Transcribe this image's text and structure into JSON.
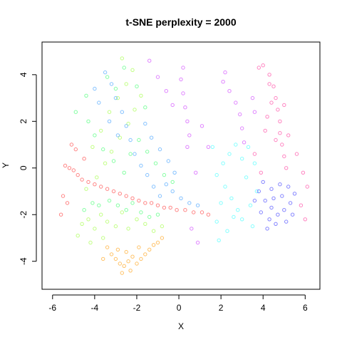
{
  "chart_data": {
    "type": "scatter",
    "title": "t-SNE perplexity = 2000",
    "xlabel": "X",
    "ylabel": "Y",
    "xlim": [
      -6.5,
      6.7
    ],
    "ylim": [
      -5.2,
      5.4
    ],
    "xticks": [
      -6,
      -4,
      -2,
      0,
      2,
      4,
      6
    ],
    "yticks": [
      -4,
      -2,
      0,
      2,
      4
    ],
    "grid": false,
    "legend": "none",
    "marker": "open circle",
    "clusters": [
      {
        "color": "#ff3333",
        "points": [
          [
            -5.4,
            0.1
          ],
          [
            -5.2,
            0.0
          ],
          [
            -5.0,
            -0.1
          ],
          [
            -4.8,
            -0.3
          ],
          [
            -4.6,
            -0.5
          ],
          [
            -4.3,
            -0.6
          ],
          [
            -4.0,
            -0.7
          ],
          [
            -3.7,
            -0.8
          ],
          [
            -3.4,
            -0.9
          ],
          [
            -3.1,
            -1.0
          ],
          [
            -2.8,
            -1.1
          ],
          [
            -2.5,
            -1.2
          ],
          [
            -2.2,
            -1.3
          ],
          [
            -1.9,
            -1.4
          ],
          [
            -1.6,
            -1.5
          ],
          [
            -1.3,
            -1.5
          ],
          [
            -1.0,
            -1.6
          ],
          [
            -0.7,
            -1.7
          ],
          [
            -0.4,
            -1.7
          ],
          [
            -0.1,
            -1.8
          ],
          [
            0.3,
            -1.8
          ],
          [
            0.7,
            -1.9
          ],
          [
            1.1,
            -1.9
          ],
          [
            1.4,
            -2.0
          ],
          [
            -5.5,
            -1.2
          ],
          [
            -5.6,
            -2.0
          ],
          [
            -5.3,
            -1.5
          ],
          [
            -4.9,
            0.8
          ],
          [
            -5.1,
            1.0
          ],
          [
            -4.5,
            0.4
          ]
        ]
      },
      {
        "color": "#ff9900",
        "points": [
          [
            -3.2,
            -3.7
          ],
          [
            -3.0,
            -3.9
          ],
          [
            -2.8,
            -4.1
          ],
          [
            -2.6,
            -4.2
          ],
          [
            -2.4,
            -4.0
          ],
          [
            -2.2,
            -3.8
          ],
          [
            -2.0,
            -4.1
          ],
          [
            -1.8,
            -3.9
          ],
          [
            -1.6,
            -3.7
          ],
          [
            -1.4,
            -3.5
          ],
          [
            -2.5,
            -3.6
          ],
          [
            -2.9,
            -3.5
          ],
          [
            -3.4,
            -3.4
          ],
          [
            -1.2,
            -3.3
          ],
          [
            -1.0,
            -3.2
          ],
          [
            -0.8,
            -3.0
          ],
          [
            -2.3,
            -4.4
          ],
          [
            -2.7,
            -4.5
          ],
          [
            -3.6,
            -3.9
          ],
          [
            -1.9,
            -3.4
          ]
        ]
      },
      {
        "color": "#99ff33",
        "points": [
          [
            -4.6,
            -2.4
          ],
          [
            -4.3,
            -2.2
          ],
          [
            -4.0,
            -2.6
          ],
          [
            -3.7,
            -2.0
          ],
          [
            -3.4,
            -2.3
          ],
          [
            -3.0,
            -2.5
          ],
          [
            -2.7,
            -1.9
          ],
          [
            -2.4,
            -2.6
          ],
          [
            -2.0,
            -2.2
          ],
          [
            -1.6,
            -2.4
          ],
          [
            -1.2,
            -2.7
          ],
          [
            -0.8,
            -2.5
          ],
          [
            -4.4,
            -0.9
          ],
          [
            -3.9,
            -0.4
          ],
          [
            -3.5,
            0.2
          ],
          [
            -3.2,
            0.7
          ],
          [
            -2.8,
            1.3
          ],
          [
            -2.4,
            1.9
          ],
          [
            -2.1,
            2.5
          ],
          [
            -1.8,
            3.1
          ],
          [
            -3.7,
            1.6
          ],
          [
            -3.3,
            2.4
          ],
          [
            -2.9,
            3.0
          ],
          [
            -2.5,
            3.6
          ],
          [
            -2.2,
            4.2
          ],
          [
            -2.7,
            4.7
          ],
          [
            -4.8,
            -2.9
          ],
          [
            -4.2,
            -3.2
          ],
          [
            -3.6,
            -3.0
          ],
          [
            -4.1,
            0.9
          ]
        ]
      },
      {
        "color": "#33ff66",
        "points": [
          [
            -4.5,
            -1.8
          ],
          [
            -4.1,
            -1.5
          ],
          [
            -3.8,
            -1.6
          ],
          [
            -3.3,
            -1.4
          ],
          [
            -2.9,
            -1.6
          ],
          [
            -2.5,
            -1.8
          ],
          [
            -2.2,
            -1.5
          ],
          [
            -1.8,
            -1.9
          ],
          [
            -1.4,
            -2.1
          ],
          [
            -1.0,
            -2.0
          ],
          [
            -4.3,
            2.0
          ],
          [
            -4.0,
            1.4
          ],
          [
            -3.6,
            0.8
          ],
          [
            -3.1,
            0.3
          ],
          [
            -2.6,
            -0.2
          ],
          [
            -2.3,
            0.6
          ],
          [
            -1.9,
            1.2
          ],
          [
            -1.5,
            0.7
          ],
          [
            -1.1,
            0.2
          ],
          [
            -0.7,
            -0.3
          ],
          [
            -0.3,
            -0.6
          ],
          [
            -3.0,
            3.4
          ],
          [
            -3.4,
            3.9
          ],
          [
            -2.6,
            4.3
          ],
          [
            -2.0,
            3.5
          ],
          [
            -1.6,
            2.6
          ],
          [
            -4.4,
            3.1
          ],
          [
            -4.9,
            2.4
          ]
        ]
      },
      {
        "color": "#3399ff",
        "points": [
          [
            -3.5,
            4.1
          ],
          [
            -3.2,
            3.6
          ],
          [
            -3.0,
            3.0
          ],
          [
            -2.7,
            2.4
          ],
          [
            -2.5,
            1.8
          ],
          [
            -2.3,
            1.2
          ],
          [
            -2.1,
            0.6
          ],
          [
            -1.8,
            0.1
          ],
          [
            -1.5,
            -0.3
          ],
          [
            -1.2,
            -0.8
          ],
          [
            -0.9,
            -1.2
          ],
          [
            -0.6,
            -0.7
          ],
          [
            -0.3,
            -1.0
          ],
          [
            0.1,
            -1.3
          ],
          [
            0.5,
            -1.5
          ],
          [
            0.9,
            -1.6
          ],
          [
            -3.8,
            2.8
          ],
          [
            -4.0,
            3.4
          ],
          [
            -3.3,
            2.0
          ],
          [
            -2.9,
            1.4
          ],
          [
            -1.6,
            1.9
          ],
          [
            -1.3,
            1.3
          ],
          [
            -0.9,
            0.8
          ],
          [
            -0.5,
            0.3
          ],
          [
            -0.2,
            -0.2
          ]
        ]
      },
      {
        "color": "#33ffff",
        "points": [
          [
            1.8,
            -0.3
          ],
          [
            2.1,
            0.2
          ],
          [
            2.4,
            0.6
          ],
          [
            2.7,
            1.0
          ],
          [
            3.0,
            0.4
          ],
          [
            3.3,
            0.9
          ],
          [
            3.6,
            0.2
          ],
          [
            2.2,
            -0.8
          ],
          [
            2.5,
            -1.3
          ],
          [
            2.8,
            -1.8
          ],
          [
            2.6,
            -2.1
          ],
          [
            3.0,
            -2.2
          ],
          [
            3.4,
            -1.6
          ],
          [
            3.7,
            -1.0
          ],
          [
            2.0,
            -1.5
          ],
          [
            1.8,
            -2.3
          ],
          [
            1.9,
            -3.1
          ],
          [
            2.3,
            -2.7
          ],
          [
            3.2,
            -0.4
          ],
          [
            3.5,
            -2.5
          ],
          [
            1.6,
            0.9
          ]
        ]
      },
      {
        "color": "#3333ff",
        "points": [
          [
            3.8,
            -1.0
          ],
          [
            4.1,
            -1.4
          ],
          [
            4.4,
            -1.7
          ],
          [
            4.7,
            -2.0
          ],
          [
            5.0,
            -1.8
          ],
          [
            5.3,
            -1.5
          ],
          [
            5.5,
            -1.1
          ],
          [
            4.6,
            -2.4
          ],
          [
            4.3,
            -2.2
          ],
          [
            4.9,
            -1.2
          ],
          [
            5.2,
            -0.8
          ],
          [
            4.0,
            -0.6
          ],
          [
            4.4,
            -0.9
          ],
          [
            3.9,
            -1.9
          ],
          [
            4.2,
            -2.6
          ],
          [
            5.1,
            -2.3
          ],
          [
            5.4,
            -2.0
          ],
          [
            4.8,
            -0.7
          ],
          [
            3.6,
            -1.4
          ],
          [
            4.5,
            -1.3
          ]
        ]
      },
      {
        "color": "#cc33ff",
        "points": [
          [
            0.1,
            3.8
          ],
          [
            0.2,
            3.2
          ],
          [
            0.3,
            2.6
          ],
          [
            0.4,
            2.0
          ],
          [
            0.5,
            1.4
          ],
          [
            0.4,
            0.9
          ],
          [
            0.2,
            4.3
          ],
          [
            2.1,
            3.7
          ],
          [
            2.4,
            3.3
          ],
          [
            2.7,
            2.8
          ],
          [
            2.9,
            2.3
          ],
          [
            3.0,
            1.7
          ],
          [
            3.1,
            1.1
          ],
          [
            2.2,
            4.1
          ],
          [
            -1.4,
            4.6
          ],
          [
            -1.0,
            3.9
          ],
          [
            -0.6,
            3.3
          ],
          [
            -0.3,
            2.7
          ],
          [
            1.1,
            1.8
          ],
          [
            1.4,
            0.9
          ],
          [
            0.8,
            -0.2
          ],
          [
            0.6,
            -2.6
          ],
          [
            0.9,
            -3.2
          ],
          [
            3.5,
            3.0
          ],
          [
            3.6,
            2.4
          ]
        ]
      },
      {
        "color": "#ff3399",
        "points": [
          [
            4.0,
            4.4
          ],
          [
            4.3,
            4.0
          ],
          [
            4.5,
            3.5
          ],
          [
            4.6,
            3.0
          ],
          [
            4.7,
            2.5
          ],
          [
            4.8,
            2.0
          ],
          [
            4.8,
            1.5
          ],
          [
            4.9,
            1.0
          ],
          [
            5.0,
            0.5
          ],
          [
            5.1,
            0.0
          ],
          [
            4.6,
            1.2
          ],
          [
            4.2,
            2.2
          ],
          [
            4.4,
            2.8
          ],
          [
            4.3,
            3.6
          ],
          [
            5.0,
            2.7
          ],
          [
            4.1,
            1.6
          ],
          [
            3.8,
            4.3
          ],
          [
            5.2,
            1.4
          ],
          [
            5.6,
            0.6
          ],
          [
            5.9,
            -0.2
          ],
          [
            6.1,
            -0.8
          ],
          [
            5.8,
            -1.6
          ],
          [
            6.0,
            -2.2
          ],
          [
            3.6,
            0.6
          ],
          [
            3.9,
            -0.2
          ]
        ]
      }
    ]
  }
}
